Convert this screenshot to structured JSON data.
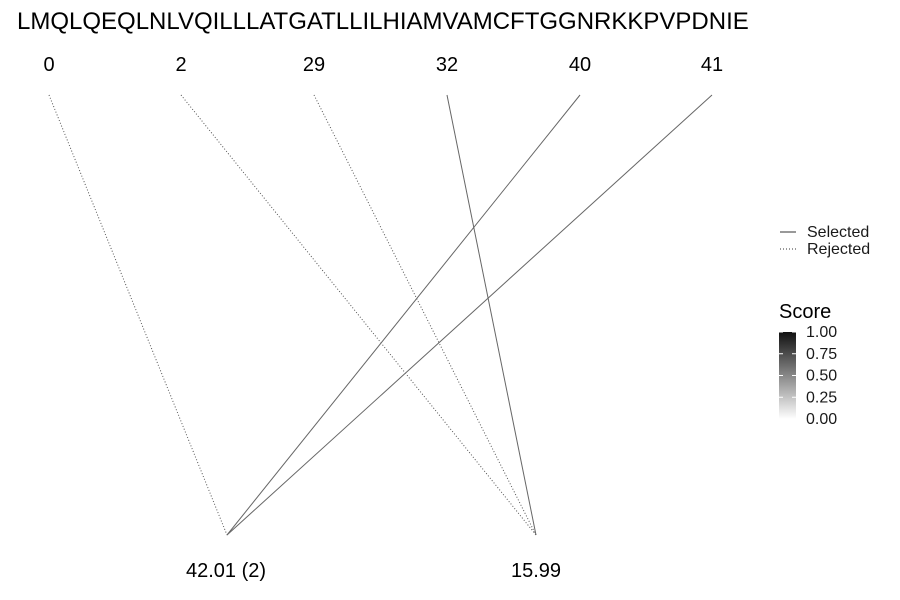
{
  "sequence": "LMQLQEQLNLVQILLLATGATLLILHIAMVAMCFTGGNRKKPVPDNIE",
  "positions": [
    "0",
    "2",
    "29",
    "32",
    "40",
    "41"
  ],
  "bottom_labels": [
    "42.01 (2)",
    "15.99"
  ],
  "links": [
    {
      "from": 0,
      "to": 0,
      "status": "rejected"
    },
    {
      "from": 1,
      "to": 1,
      "status": "rejected"
    },
    {
      "from": 2,
      "to": 1,
      "status": "rejected"
    },
    {
      "from": 3,
      "to": 1,
      "status": "selected"
    },
    {
      "from": 4,
      "to": 0,
      "status": "selected"
    },
    {
      "from": 5,
      "to": 0,
      "status": "selected"
    }
  ],
  "legend": {
    "selected_label": "Selected",
    "rejected_label": "Rejected"
  },
  "score_scale": {
    "title": "Score",
    "ticks": [
      "1.00",
      "0.75",
      "0.50",
      "0.25",
      "0.00"
    ],
    "color_high": "#111111",
    "color_low": "#ffffff"
  },
  "colors": {
    "selected_line": "#666666",
    "rejected_line": "#555555"
  }
}
